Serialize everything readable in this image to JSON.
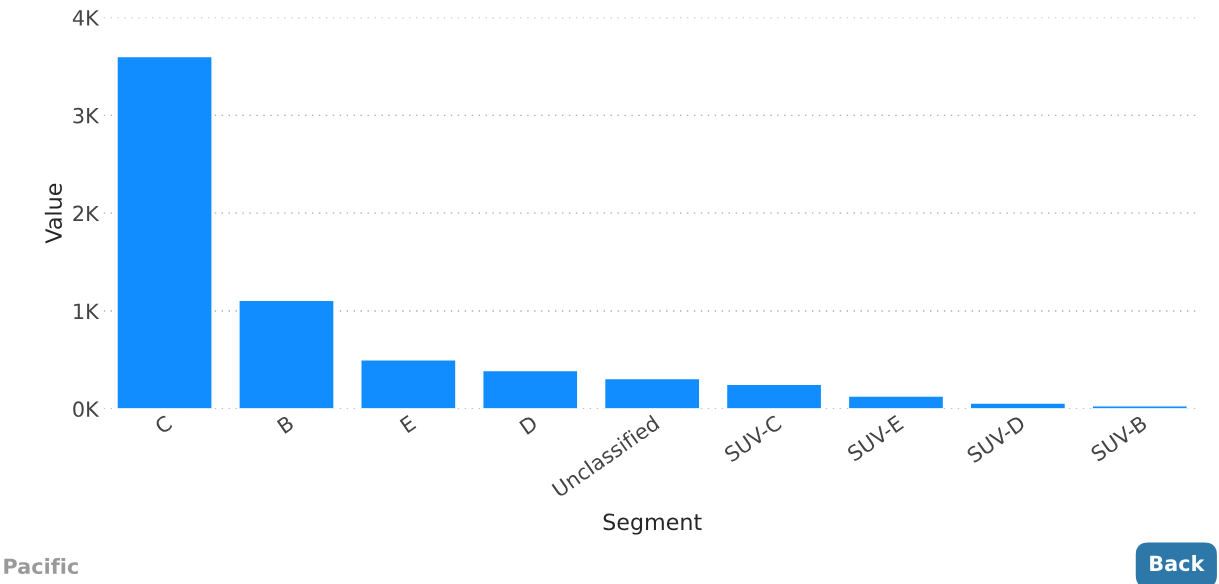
{
  "chart_data": {
    "type": "bar",
    "xlabel": "Segment",
    "ylabel": "Value",
    "categories": [
      "C",
      "B",
      "E",
      "D",
      "Unclassified",
      "SUV-C",
      "SUV-E",
      "SUV-D",
      "SUV-B"
    ],
    "values": [
      3600,
      1110,
      500,
      390,
      310,
      250,
      130,
      60,
      30
    ],
    "color": "#118dff",
    "ylim": [
      0,
      4000
    ],
    "yticks": [
      {
        "value": 0,
        "label": "0K"
      },
      {
        "value": 1000,
        "label": "1K"
      },
      {
        "value": 2000,
        "label": "2K"
      },
      {
        "value": 3000,
        "label": "3K"
      },
      {
        "value": 4000,
        "label": "4K"
      }
    ],
    "grid": "y",
    "annotations": [
      "Pacific",
      "Back"
    ]
  }
}
